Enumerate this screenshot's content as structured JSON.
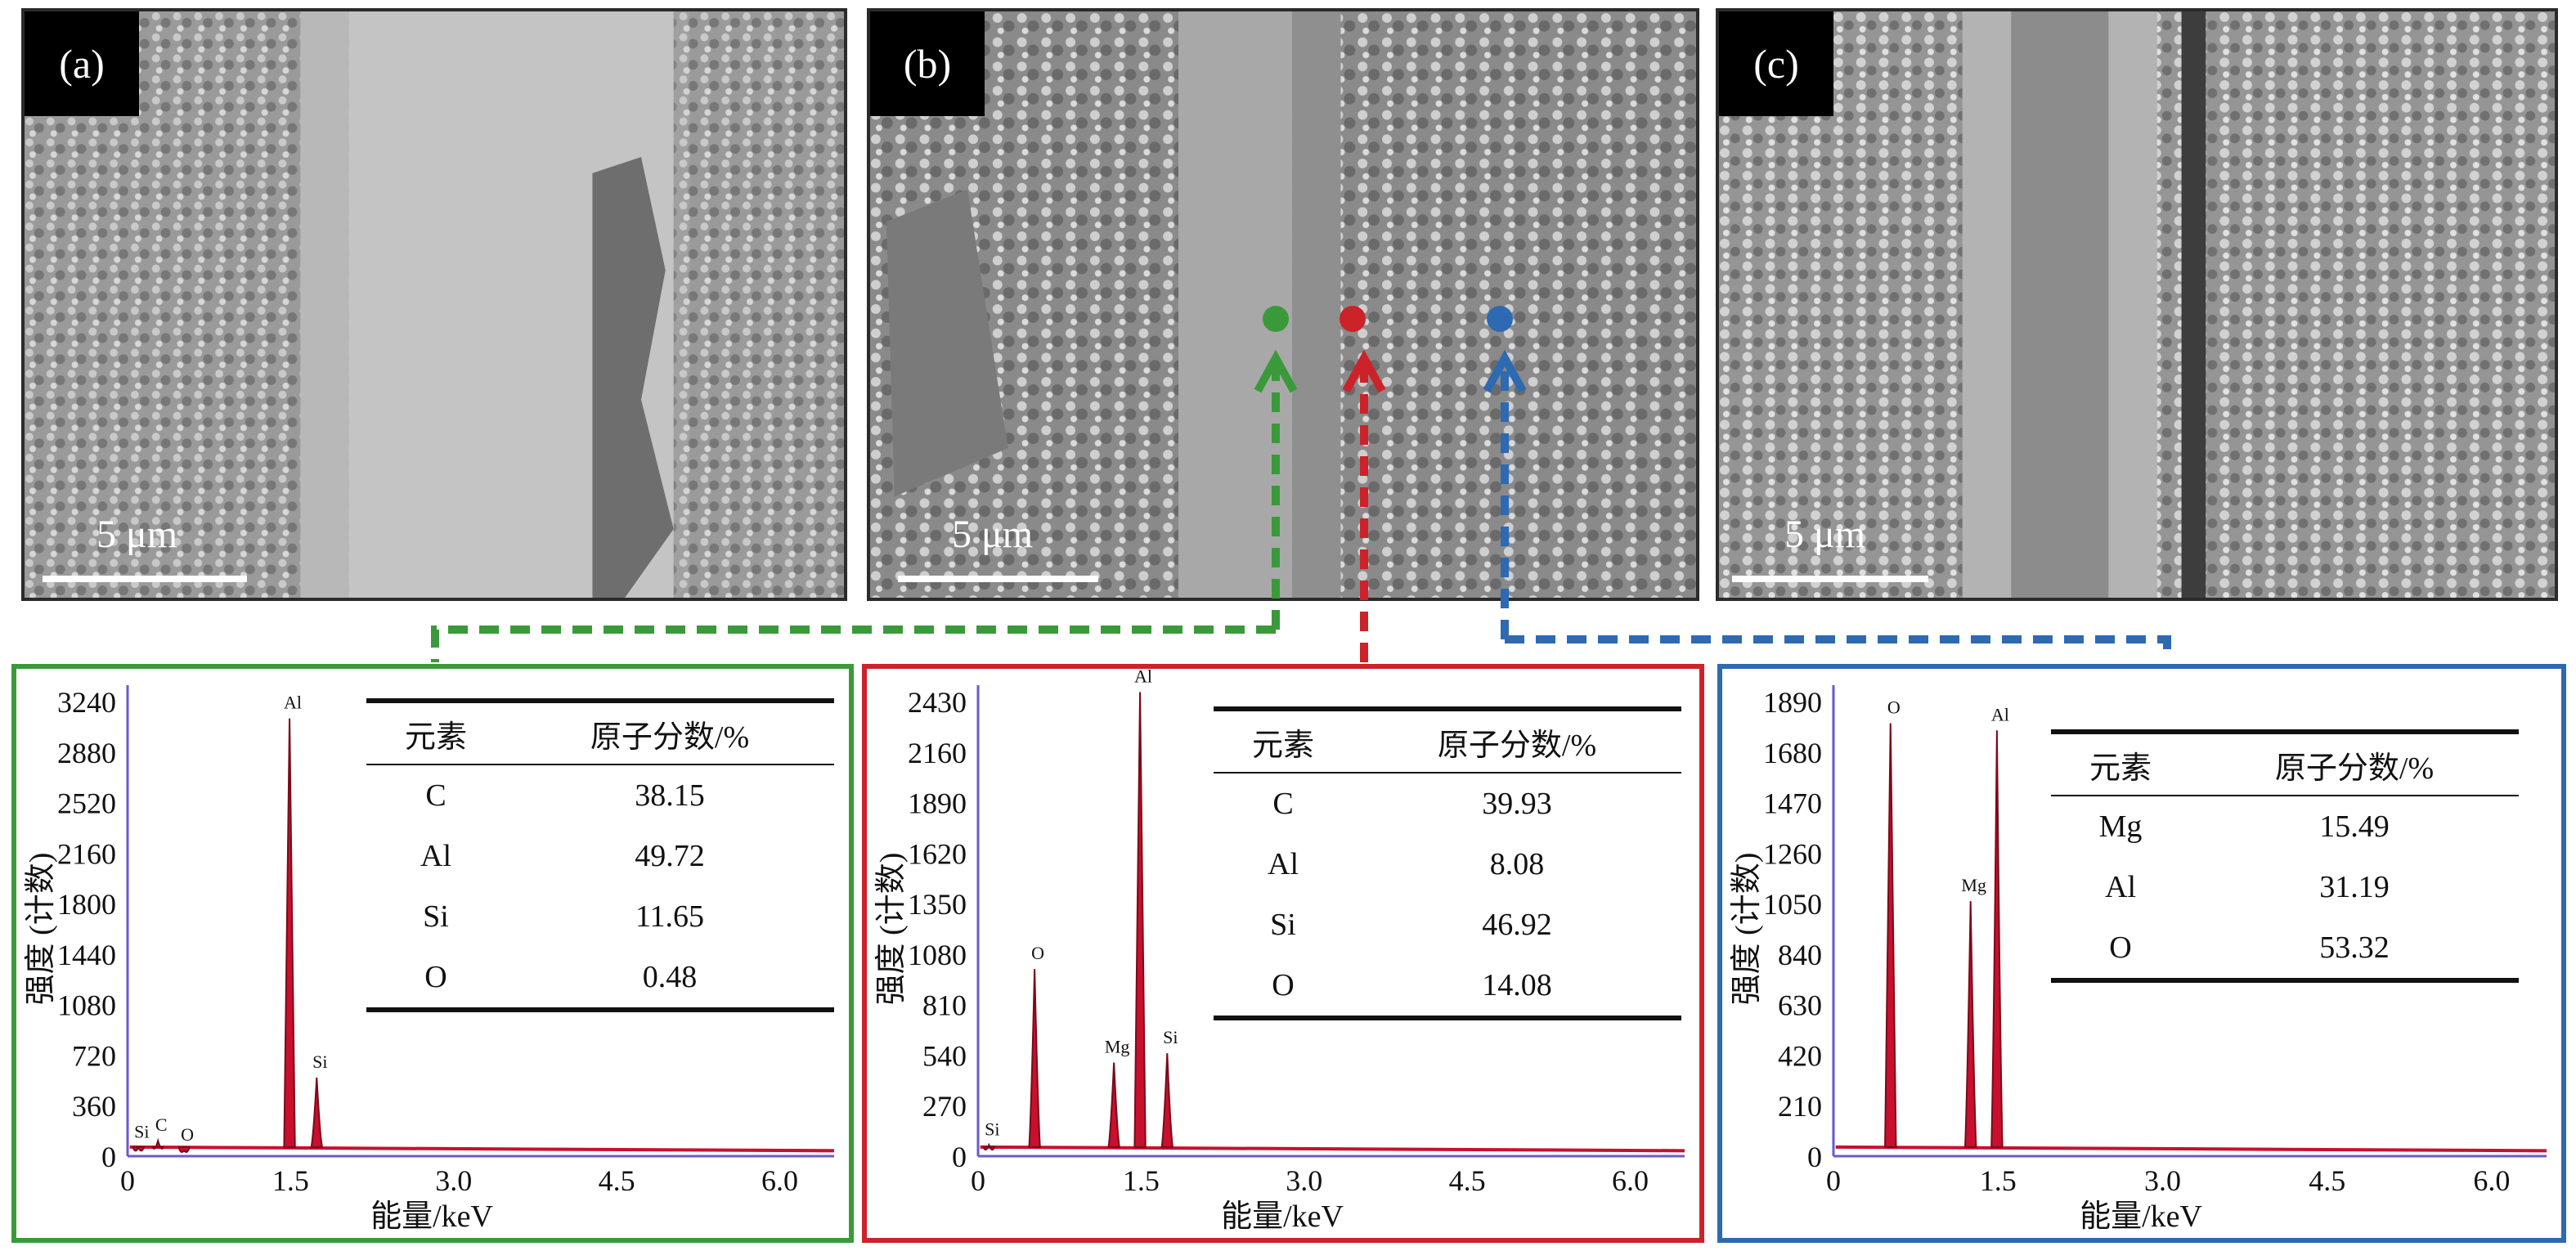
{
  "panels": [
    {
      "label": "(a)",
      "scale": "5 μm"
    },
    {
      "label": "(b)",
      "scale": "5 μm"
    },
    {
      "label": "(c)",
      "scale": "5 μm"
    }
  ],
  "colors": {
    "green": "#3a9a3a",
    "red": "#cc2229",
    "blue": "#2d6ab1",
    "peak": "#c8102e",
    "axis": "#6a5acd"
  },
  "eds": [
    {
      "ylabel": "强度 (计数)",
      "xlabel": "能量/keV",
      "yticks": [
        "3240",
        "2880",
        "2520",
        "2160",
        "1800",
        "1440",
        "1080",
        "720",
        "360",
        "0"
      ],
      "xticks": [
        "0",
        "1.5",
        "3.0",
        "4.5",
        "6.0"
      ],
      "peak_labels": [
        "Al",
        "Si",
        "Si",
        "C",
        "O"
      ],
      "table": {
        "header": [
          "元素",
          "原子分数/%"
        ],
        "rows": [
          [
            "C",
            "38.15"
          ],
          [
            "Al",
            "49.72"
          ],
          [
            "Si",
            "11.65"
          ],
          [
            "O",
            "0.48"
          ]
        ]
      }
    },
    {
      "ylabel": "强度 (计数)",
      "xlabel": "能量/keV",
      "yticks": [
        "2430",
        "2160",
        "1890",
        "1620",
        "1350",
        "1080",
        "810",
        "540",
        "270",
        "0"
      ],
      "xticks": [
        "0",
        "1.5",
        "3.0",
        "4.5",
        "6.0"
      ],
      "peak_labels": [
        "Al",
        "O",
        "Mg",
        "Si",
        "Si"
      ],
      "table": {
        "header": [
          "元素",
          "原子分数/%"
        ],
        "rows": [
          [
            "C",
            "39.93"
          ],
          [
            "Al",
            "8.08"
          ],
          [
            "Si",
            "46.92"
          ],
          [
            "O",
            "14.08"
          ]
        ]
      }
    },
    {
      "ylabel": "强度 (计数)",
      "xlabel": "能量/keV",
      "yticks": [
        "1890",
        "1680",
        "1470",
        "1260",
        "1050",
        "840",
        "630",
        "420",
        "210",
        "0"
      ],
      "xticks": [
        "0",
        "1.5",
        "3.0",
        "4.5",
        "6.0"
      ],
      "peak_labels": [
        "O",
        "Al",
        "Mg"
      ],
      "table": {
        "header": [
          "元素",
          "原子分数/%"
        ],
        "rows": [
          [
            "Mg",
            "15.49"
          ],
          [
            "Al",
            "31.19"
          ],
          [
            "O",
            "53.32"
          ]
        ]
      }
    }
  ],
  "chart_data": [
    {
      "type": "line",
      "x_range": [
        0,
        6.5
      ],
      "ylim": [
        0,
        3240
      ],
      "peaks": [
        {
          "element": "Si",
          "x": 0.1,
          "y": 60
        },
        {
          "element": "C",
          "x": 0.28,
          "y": 110
        },
        {
          "element": "O",
          "x": 0.52,
          "y": 40
        },
        {
          "element": "Al",
          "x": 1.49,
          "y": 3120
        },
        {
          "element": "Si",
          "x": 1.74,
          "y": 560
        }
      ]
    },
    {
      "type": "line",
      "x_range": [
        0,
        6.5
      ],
      "ylim": [
        0,
        2430
      ],
      "peaks": [
        {
          "element": "Si",
          "x": 0.1,
          "y": 60
        },
        {
          "element": "O",
          "x": 0.52,
          "y": 1000
        },
        {
          "element": "Mg",
          "x": 1.25,
          "y": 500
        },
        {
          "element": "Al",
          "x": 1.49,
          "y": 2480
        },
        {
          "element": "Si",
          "x": 1.74,
          "y": 550
        }
      ]
    },
    {
      "type": "line",
      "x_range": [
        0,
        6.5
      ],
      "ylim": [
        0,
        1890
      ],
      "peaks": [
        {
          "element": "O",
          "x": 0.52,
          "y": 1800
        },
        {
          "element": "Mg",
          "x": 1.25,
          "y": 1060
        },
        {
          "element": "Al",
          "x": 1.49,
          "y": 1770
        }
      ]
    }
  ]
}
